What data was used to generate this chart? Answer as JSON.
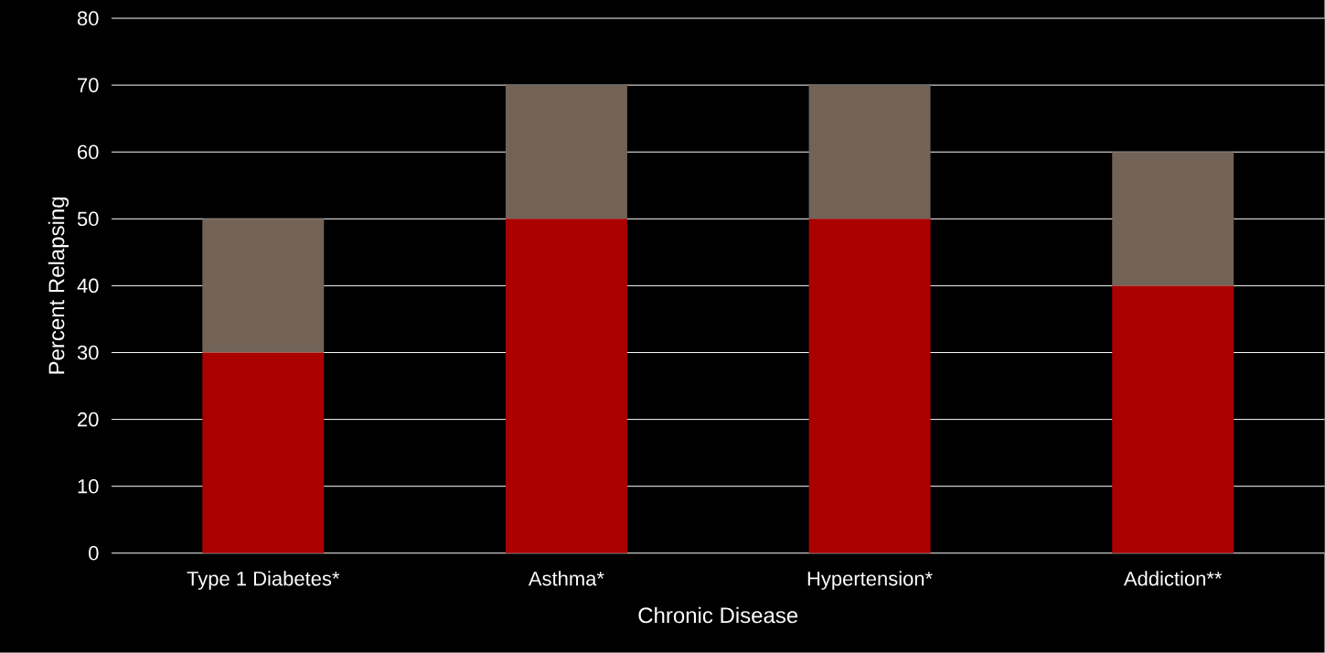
{
  "chart_data": {
    "type": "bar",
    "stacked": true,
    "xlabel": "Chronic Disease",
    "ylabel": "Percent Relapsing",
    "categories": [
      "Type 1 Diabetes*",
      "Asthma*",
      "Hypertension*",
      "Addiction**"
    ],
    "series": [
      {
        "color": "#aa0000",
        "values": [
          30,
          50,
          50,
          40
        ]
      },
      {
        "color": "#736357",
        "values": [
          20,
          20,
          20,
          20
        ]
      }
    ],
    "ylim": [
      0,
      80
    ],
    "yticks": [
      0,
      10,
      20,
      30,
      40,
      50,
      60,
      70,
      80
    ],
    "grid": "y"
  }
}
